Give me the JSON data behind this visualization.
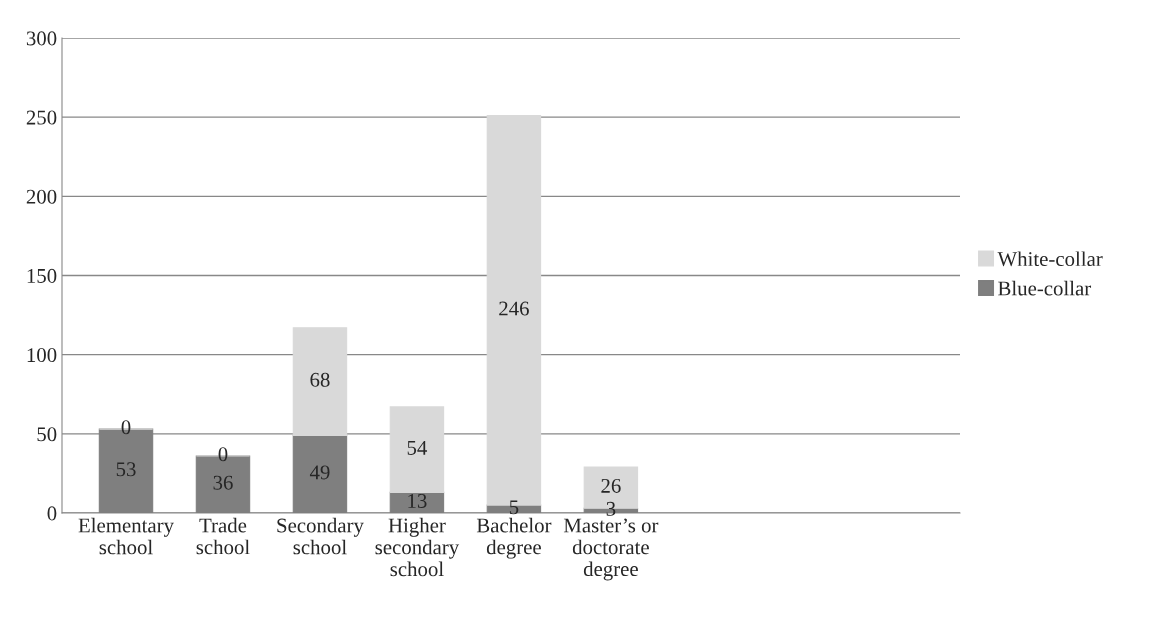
{
  "chart_data": {
    "type": "bar",
    "stacked": true,
    "categories": [
      "Elementary\nschool",
      "Trade\nschool",
      "Secondary\nschool",
      "Higher\nsecondary\nschool",
      "Bachelor\ndegree",
      "Master’s or\ndoctorate\ndegree"
    ],
    "series": [
      {
        "name": "Blue-collar",
        "color": "#7f7f7f",
        "values": [
          53,
          36,
          49,
          13,
          5,
          3
        ]
      },
      {
        "name": "White-collar",
        "color": "#d9d9d9",
        "values": [
          0,
          0,
          68,
          54,
          246,
          26
        ]
      }
    ],
    "ylim": [
      0,
      300
    ],
    "yticks": [
      0,
      50,
      100,
      150,
      200,
      250,
      300
    ],
    "grid": "y",
    "legend": "right",
    "data_labels": true
  }
}
